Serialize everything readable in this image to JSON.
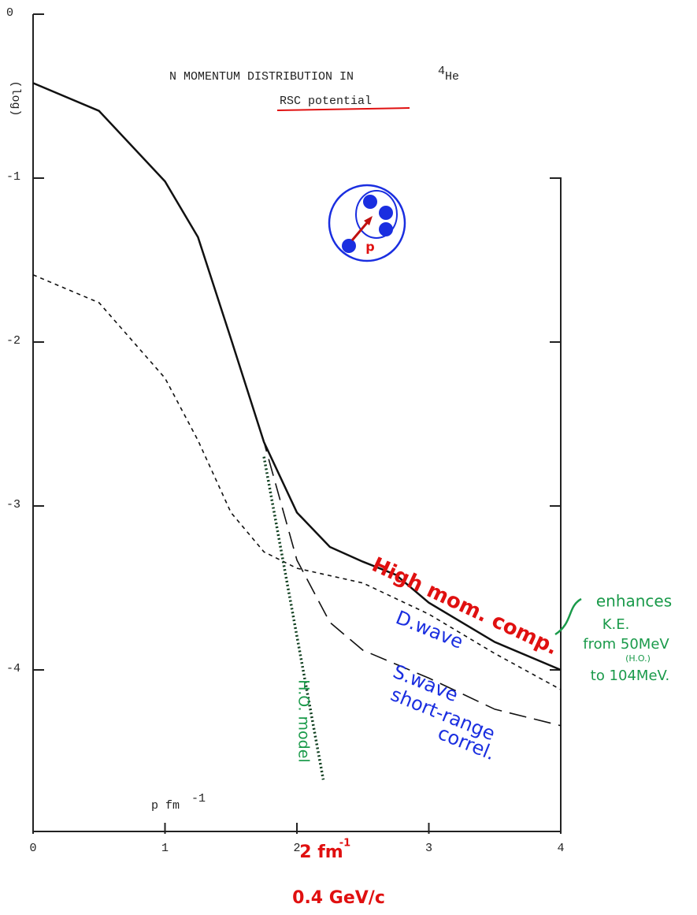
{
  "chart_data": {
    "type": "line",
    "title": "N MOMENTUM DISTRIBUTION IN",
    "title_isotope": {
      "mass": "4",
      "symbol": "He"
    },
    "subtitle": "RSC potential",
    "ylabel": "(log)",
    "xlabel": "p fm",
    "xlabel_exponent": "-1",
    "xlim": [
      0,
      4
    ],
    "xticks": [
      0,
      1,
      2,
      3,
      4
    ],
    "ylim": [
      -5,
      0
    ],
    "yticks": [
      0,
      -1,
      -2,
      -3,
      -4
    ],
    "series": [
      {
        "name": "High mom. comp.",
        "color": "#111111",
        "dash": "solid",
        "label_color": "#e01010",
        "x": [
          0,
          0.5,
          1,
          1.25,
          1.5,
          1.75,
          2,
          2.25,
          2.5,
          2.75,
          3,
          3.5,
          4
        ],
        "values": [
          -0.42,
          -0.59,
          -1.02,
          -1.36,
          -1.98,
          -2.61,
          -3.04,
          -3.25,
          -3.34,
          -3.42,
          -3.59,
          -3.83,
          -4.0
        ]
      },
      {
        "name": "D.wave",
        "color": "#111111",
        "dash": "short",
        "label_color": "#1a2ee0",
        "x": [
          0,
          0.5,
          1,
          1.25,
          1.5,
          1.75,
          2,
          2.5,
          3,
          3.5,
          4
        ],
        "values": [
          -1.59,
          -1.76,
          -2.22,
          -2.6,
          -3.04,
          -3.28,
          -3.38,
          -3.47,
          -3.66,
          -3.9,
          -4.12
        ]
      },
      {
        "name": "S.wave",
        "color": "#111111",
        "dash": "long",
        "label_color": "#1a2ee0",
        "x": [
          1.5,
          1.75,
          2,
          2.25,
          2.5,
          3,
          3.5,
          4
        ],
        "values": [
          -1.98,
          -2.61,
          -3.33,
          -3.71,
          -3.88,
          -4.05,
          -4.24,
          -4.34
        ]
      },
      {
        "name": "H.O. model",
        "color": "#0d3d1d",
        "dash": "dotted",
        "label_color": "#1a9a4a",
        "x": [
          1.75,
          2.2
        ],
        "values": [
          -2.7,
          -4.67
        ]
      }
    ],
    "annotations": [
      {
        "text": "short-range",
        "color": "#1a2ee0"
      },
      {
        "text": "correl.",
        "color": "#1a2ee0"
      },
      {
        "text": "enhances",
        "color": "#1a9a4a"
      },
      {
        "text": "K.E.",
        "color": "#1a9a4a"
      },
      {
        "text": "from 50MeV",
        "color": "#1a9a4a"
      },
      {
        "text": "(H.O.)",
        "color": "#1a9a4a"
      },
      {
        "text": "to 104MeV.",
        "color": "#1a9a4a"
      },
      {
        "text": "2 fm",
        "color": "#e01010"
      },
      {
        "text": "-1",
        "color": "#e01010"
      },
      {
        "text": "0.4 GeV/c",
        "color": "#e01010"
      },
      {
        "text": "p",
        "color": "#e01010"
      }
    ]
  }
}
